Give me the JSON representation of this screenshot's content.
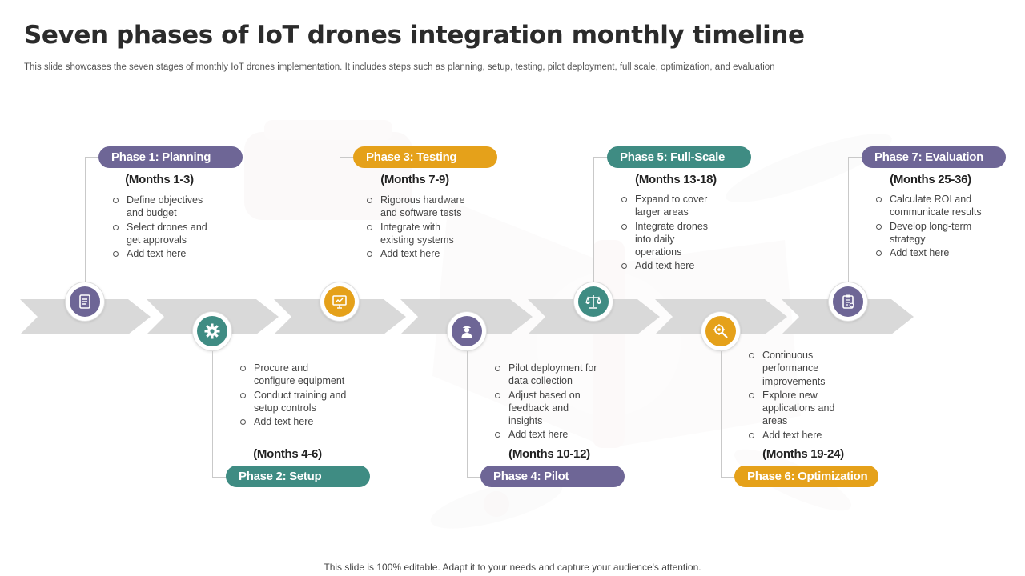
{
  "header": {
    "title": "Seven phases of IoT drones integration monthly timeline",
    "subtitle": "This slide showcases the seven stages of monthly IoT drones implementation. It includes steps such as planning, setup, testing, pilot deployment, full scale, optimization, and evaluation"
  },
  "footer": {
    "text": "This slide is 100% editable. Adapt it to your needs and capture your audience's attention."
  },
  "colors": {
    "purple": "#6e6696",
    "orange": "#e5a11a",
    "teal": "#3f8c83",
    "arrow": "#d9d9d9"
  },
  "phases": [
    {
      "label": "Phase 1: Planning",
      "months": "(Months 1-3)",
      "icon": "planning-document-icon",
      "bullets": [
        "Define objectives and budget",
        "Select drones and get approvals",
        "Add text here"
      ]
    },
    {
      "label": "Phase 2: Setup",
      "months": "(Months 4-6)",
      "icon": "gear-icon",
      "bullets": [
        "Procure and configure equipment",
        "Conduct training and setup controls",
        "Add text here"
      ]
    },
    {
      "label": "Phase 3: Testing",
      "months": "(Months 7-9)",
      "icon": "presentation-board-icon",
      "bullets": [
        "Rigorous hardware and software tests",
        "Integrate with existing systems",
        "Add text here"
      ]
    },
    {
      "label": "Phase 4: Pilot",
      "months": "(Months 10-12)",
      "icon": "pilot-person-icon",
      "bullets": [
        "Pilot deployment for data collection",
        "Adjust based on feedback and insights",
        "Add text here"
      ]
    },
    {
      "label": "Phase 5: Full-Scale",
      "months": "(Months 13-18)",
      "icon": "balance-scale-icon",
      "bullets": [
        "Expand to cover larger areas",
        "Integrate drones into daily operations",
        "Add text here"
      ]
    },
    {
      "label": "Phase 6: Optimization",
      "months": "(Months 19-24)",
      "icon": "optimization-magnifier-icon",
      "bullets": [
        "Continuous performance improvements",
        "Explore new applications and areas",
        "Add text here"
      ]
    },
    {
      "label": "Phase 7: Evaluation",
      "months": "(Months 25-36)",
      "icon": "evaluation-clipboard-icon",
      "bullets": [
        "Calculate ROI and communicate results",
        "Develop long-term strategy",
        "Add text here"
      ]
    }
  ]
}
